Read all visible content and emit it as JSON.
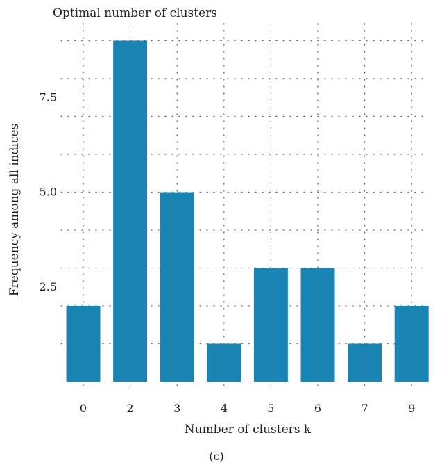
{
  "chart_data": {
    "type": "bar",
    "title": "Optimal number of clusters",
    "xlabel": "Number of clusters k",
    "ylabel": "Frequency among all indices",
    "categories": [
      "0",
      "2",
      "3",
      "4",
      "5",
      "6",
      "7",
      "9"
    ],
    "values": [
      2,
      9,
      5,
      1,
      3,
      3,
      1,
      2
    ],
    "yticks": [
      "2.5",
      "5.0",
      "7.5"
    ],
    "ylim": [
      0,
      10
    ],
    "grid": true,
    "colors": {
      "bar": "#1a85b5"
    }
  },
  "caption": "(c)"
}
